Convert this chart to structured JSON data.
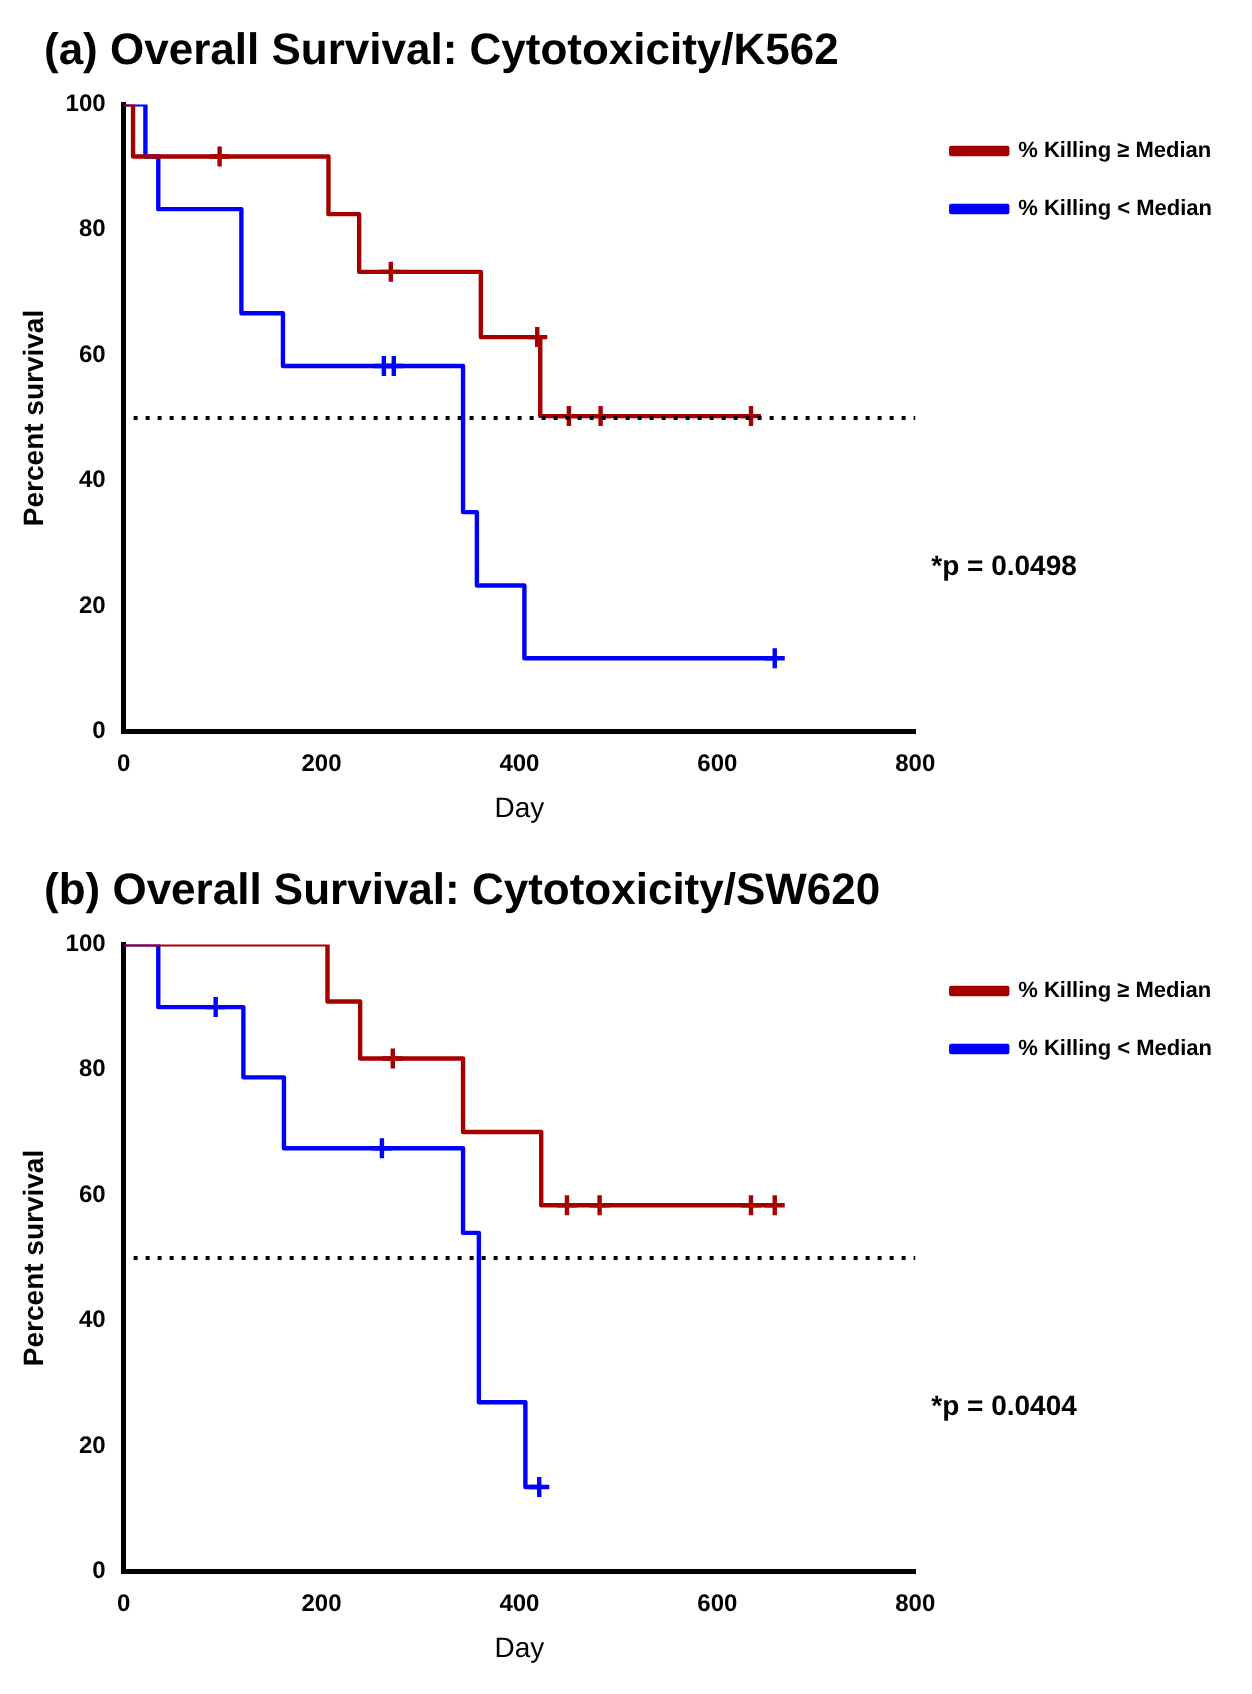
{
  "chart_data": [
    {
      "type": "step",
      "title": "(a) Overall Survival: Cytotoxicity/K562",
      "xlabel": "Day",
      "ylabel": "Percent survival",
      "xlim": [
        0,
        800
      ],
      "xticks": [
        0,
        200,
        400,
        600,
        800
      ],
      "ylim": [
        0,
        100
      ],
      "yticks": [
        0,
        20,
        40,
        60,
        80,
        100
      ],
      "grid": false,
      "legend": "top right",
      "annotations": [
        "*p = 0.0498"
      ],
      "ref_lines": [
        {
          "axis": "y",
          "value": 50,
          "color": "#000000",
          "line_style": "dotted"
        }
      ],
      "series": [
        {
          "name": "% Killing ≥ Median",
          "type": "step",
          "color": "#a50000",
          "x": [
            0,
            9.5,
            207,
            238,
            361,
            421,
            634
          ],
          "values": [
            100,
            91.7,
            82.5,
            73.3,
            62.9,
            50.3,
            50.3
          ]
        },
        {
          "name": "% Killing < Median",
          "type": "step",
          "color": "#0000ff",
          "x": [
            0,
            22,
            35,
            119,
            161,
            343,
            357,
            405,
            658
          ],
          "values": [
            100,
            91.7,
            83.3,
            66.7,
            58.3,
            35,
            23.3,
            11.7,
            11.7
          ]
        },
        {
          "type": "scatter",
          "marker": "cross",
          "color": "#a50000",
          "x": [
            97,
            270,
            418,
            450,
            482,
            634
          ],
          "values": [
            91.7,
            73.3,
            62.9,
            50.3,
            50.3,
            50.3
          ]
        },
        {
          "type": "scatter",
          "marker": "cross",
          "color": "#0000ff",
          "x": [
            263,
            273,
            658
          ],
          "values": [
            58.3,
            58.3,
            11.7
          ]
        }
      ]
    },
    {
      "type": "step",
      "title": "(b) Overall Survival: Cytotoxicity/SW620",
      "xlabel": "Day",
      "ylabel": "Percent survival",
      "xlim": [
        0,
        800
      ],
      "xticks": [
        0,
        200,
        400,
        600,
        800
      ],
      "ylim": [
        0,
        100
      ],
      "yticks": [
        0,
        20,
        40,
        60,
        80,
        100
      ],
      "grid": false,
      "legend": "top right",
      "annotations": [
        "*p = 0.0404"
      ],
      "ref_lines": [
        {
          "axis": "y",
          "value": 50,
          "color": "#000000",
          "line_style": "dotted"
        }
      ],
      "series": [
        {
          "name": "% Killing ≥ Median",
          "type": "step",
          "color": "#a50000",
          "x": [
            0,
            206,
            239,
            343,
            422,
            658
          ],
          "values": [
            100,
            90.9,
            81.8,
            70.1,
            58.4,
            58.4
          ]
        },
        {
          "name": "% Killing < Median",
          "type": "step",
          "color": "#0000ff",
          "x": [
            0,
            35,
            121,
            162,
            343,
            359,
            406,
            420
          ],
          "values": [
            100,
            90,
            78.8,
            67.5,
            54,
            27,
            13.5,
            13.5
          ]
        },
        {
          "type": "scatter",
          "marker": "cross",
          "color": "#a50000",
          "x": [
            272,
            448,
            481,
            634,
            658
          ],
          "values": [
            81.8,
            58.4,
            58.4,
            58.4,
            58.4
          ]
        },
        {
          "type": "scatter",
          "marker": "cross",
          "color": "#0000ff",
          "x": [
            93,
            261,
            420
          ],
          "values": [
            90,
            67.5,
            13.5
          ]
        }
      ]
    }
  ]
}
